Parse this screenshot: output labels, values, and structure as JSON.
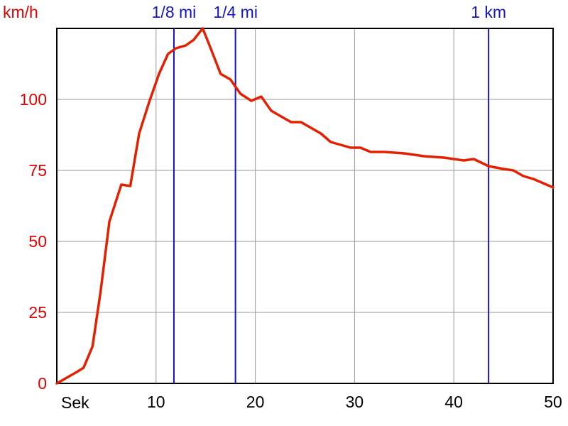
{
  "chart_data": {
    "type": "line",
    "xlabel": "Sek",
    "ylabel": "km/h",
    "xlim": [
      0,
      50
    ],
    "ylim": [
      0,
      125
    ],
    "grid": true,
    "xticks": [
      10,
      20,
      30,
      40,
      50
    ],
    "yticks": [
      0,
      25,
      50,
      75,
      100
    ],
    "markers": [
      {
        "label": "1/8 mi",
        "x": 11.8
      },
      {
        "label": "1/4 mi",
        "x": 18.0
      },
      {
        "label": "1 km",
        "x": 43.5
      }
    ],
    "series": [
      {
        "color": "#e52000",
        "x": [
          0,
          1,
          2,
          2.7,
          3.6,
          4.4,
          5.3,
          6.5,
          7.4,
          8.3,
          9.3,
          10.3,
          11.2,
          12.0,
          13.0,
          13.8,
          14.7,
          15.5,
          16.5,
          17.5,
          18.5,
          19.6,
          20.6,
          21.6,
          22.6,
          23.6,
          24.6,
          25.6,
          26.6,
          27.6,
          28.6,
          29.6,
          30.6,
          31.6,
          33.0,
          35.0,
          37.0,
          39.0,
          41.0,
          42.0,
          43.5,
          45.0,
          46.0,
          47.0,
          48.0,
          49.0,
          50.0
        ],
        "values": [
          0,
          2,
          4,
          5.5,
          13,
          32,
          57,
          70,
          69.5,
          88,
          99,
          109,
          116,
          118,
          119,
          121,
          125,
          118,
          109,
          107,
          102,
          99.5,
          101,
          96,
          94,
          92,
          92,
          90,
          88,
          85,
          84,
          83,
          83,
          81.5,
          81.5,
          81,
          80,
          79.5,
          78.5,
          79,
          76.5,
          75.5,
          75,
          73,
          72,
          70.5,
          69
        ]
      }
    ]
  },
  "colors": {
    "series_line": "#e52000",
    "marker_line": "#1414c8",
    "y_tick_text": "#e10000",
    "grid": "#9a9a9a",
    "axis": "#000000"
  }
}
